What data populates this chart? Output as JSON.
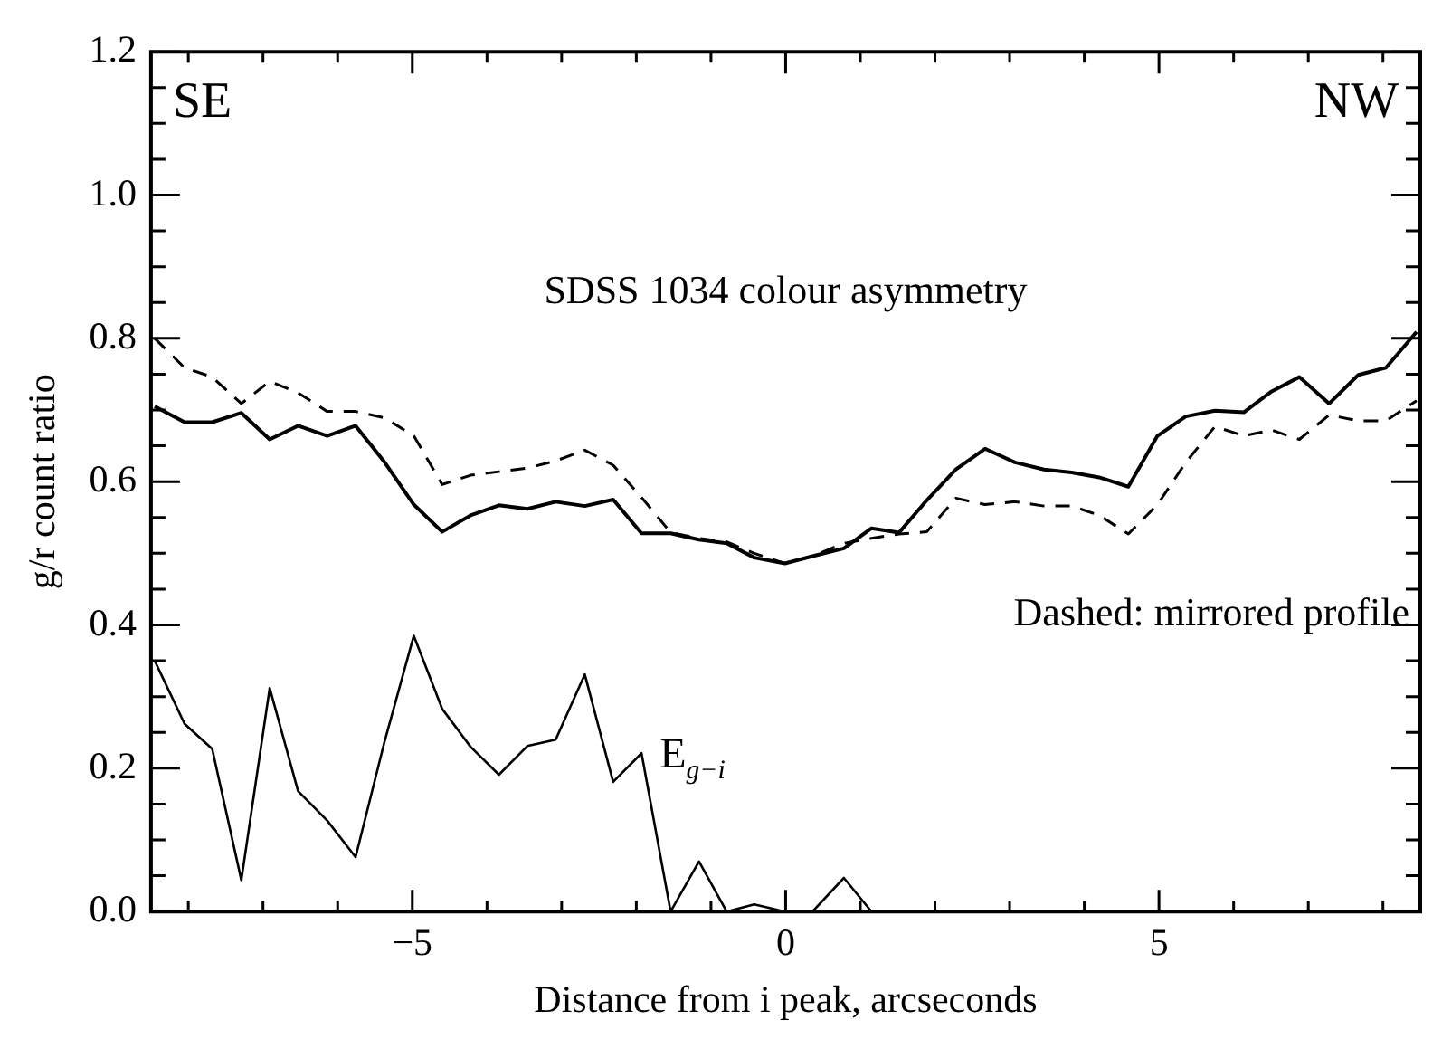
{
  "chart_data": {
    "type": "line",
    "title": "SDSS 1034 colour asymmetry",
    "xlabel": "Distance from i peak, arcseconds",
    "ylabel": "g/r count ratio",
    "annotations": [
      "SE",
      "NW",
      "Dashed: mirrored profile"
    ],
    "x": [
      -8.45,
      -8.05,
      -7.68,
      -7.29,
      -6.91,
      -6.53,
      -6.14,
      -5.76,
      -5.37,
      -4.98,
      -4.6,
      -4.22,
      -3.84,
      -3.46,
      -3.08,
      -2.69,
      -2.31,
      -1.93,
      -1.54,
      -1.16,
      -0.79,
      -0.42,
      -0.01,
      0.36,
      0.78,
      1.15,
      1.52,
      1.89,
      2.28,
      2.67,
      3.07,
      3.46,
      3.83,
      4.2,
      4.59,
      4.98,
      5.36,
      5.75,
      6.14,
      6.51,
      6.88,
      7.28,
      7.67,
      8.04,
      8.45
    ],
    "series": [
      {
        "color": "#000000",
        "line_style": "solid",
        "values": [
          0.705,
          0.683,
          0.683,
          0.696,
          0.659,
          0.678,
          0.664,
          0.678,
          0.627,
          0.568,
          0.53,
          0.553,
          0.567,
          0.562,
          0.572,
          0.566,
          0.575,
          0.528,
          0.528,
          0.519,
          0.514,
          0.494,
          0.486,
          0.496,
          0.507,
          0.535,
          0.529,
          0.574,
          0.617,
          0.646,
          0.627,
          0.617,
          0.613,
          0.606,
          0.593,
          0.664,
          0.691,
          0.699,
          0.697,
          0.726,
          0.746,
          0.709,
          0.749,
          0.759,
          0.809
        ]
      },
      {
        "color": "#000000",
        "line_style": "dashed",
        "values": [
          0.8,
          0.759,
          0.746,
          0.709,
          0.74,
          0.724,
          0.698,
          0.698,
          0.689,
          0.664,
          0.596,
          0.609,
          0.614,
          0.619,
          0.629,
          0.644,
          0.623,
          0.578,
          0.529,
          0.521,
          0.516,
          0.5,
          0.486,
          0.496,
          0.514,
          0.521,
          0.527,
          0.53,
          0.577,
          0.568,
          0.572,
          0.566,
          0.566,
          0.553,
          0.527,
          0.568,
          0.627,
          0.677,
          0.664,
          0.672,
          0.659,
          0.693,
          0.685,
          0.685,
          0.713
        ]
      },
      {
        "name": "E$_{g−i}$",
        "color": "#000000",
        "line_style": "solid",
        "values": [
          0.35,
          0.262,
          0.227,
          0.044,
          0.312,
          0.168,
          0.127,
          0.076,
          0.238,
          0.385,
          0.283,
          0.23,
          0.191,
          0.231,
          0.24,
          0.331,
          0.181,
          0.221,
          0,
          0.07,
          0,
          0.01,
          0,
          0,
          0.047,
          0,
          null,
          null,
          null,
          null,
          null,
          null,
          null,
          null,
          null,
          null,
          null,
          null,
          null,
          null,
          null,
          null,
          null,
          null,
          null
        ]
      }
    ],
    "xlim": [
      -8.5,
      8.5
    ],
    "xticks": [
      {
        "value": -8,
        "label": null
      },
      {
        "value": -7,
        "label": null
      },
      {
        "value": -6,
        "label": null
      },
      -5,
      {
        "value": -4,
        "label": null
      },
      {
        "value": -3,
        "label": null
      },
      {
        "value": -2,
        "label": null
      },
      {
        "value": -1,
        "label": null
      },
      0,
      {
        "value": 1,
        "label": null
      },
      {
        "value": 2,
        "label": null
      },
      {
        "value": 3,
        "label": null
      },
      {
        "value": 4,
        "label": null
      },
      5,
      {
        "value": 6,
        "label": null
      },
      {
        "value": 7,
        "label": null
      },
      {
        "value": 8,
        "label": null
      }
    ],
    "ylim": [
      0,
      1.2
    ],
    "yticks": [
      {
        "value": 0,
        "label": "0.0"
      },
      {
        "value": 0.05,
        "label": null
      },
      {
        "value": 0.1,
        "label": null
      },
      {
        "value": 0.15,
        "label": null
      },
      {
        "value": 0.2,
        "label": "0.2"
      },
      {
        "value": 0.25,
        "label": null
      },
      {
        "value": 0.3,
        "label": null
      },
      {
        "value": 0.35,
        "label": null
      },
      {
        "value": 0.4,
        "label": "0.4"
      },
      {
        "value": 0.45,
        "label": null
      },
      {
        "value": 0.5,
        "label": null
      },
      {
        "value": 0.55,
        "label": null
      },
      {
        "value": 0.6,
        "label": "0.6"
      },
      {
        "value": 0.65,
        "label": null
      },
      {
        "value": 0.7,
        "label": null
      },
      {
        "value": 0.75,
        "label": null
      },
      {
        "value": 0.8,
        "label": "0.8"
      },
      {
        "value": 0.85,
        "label": null
      },
      {
        "value": 0.9,
        "label": null
      },
      {
        "value": 0.95,
        "label": null
      },
      {
        "value": 1.0,
        "label": "1.0"
      },
      {
        "value": 1.05,
        "label": null
      },
      {
        "value": 1.1,
        "label": null
      },
      {
        "value": 1.15,
        "label": null
      },
      {
        "value": 1.2,
        "label": "1.2"
      }
    ],
    "marker": "none",
    "legend": false,
    "grid": false
  }
}
